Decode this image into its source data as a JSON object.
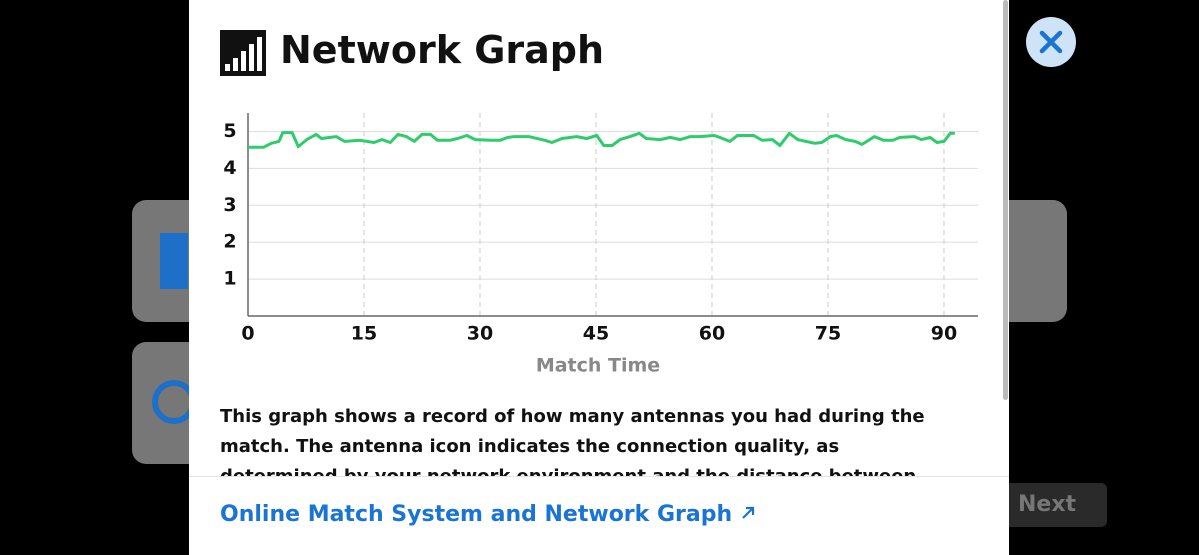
{
  "header": {
    "title": "Network Graph"
  },
  "chart_data": {
    "type": "line",
    "x_label": "Match Time",
    "color": "#2ecc6a",
    "x": [
      0,
      2,
      3,
      4,
      4.5,
      5.7,
      6.5,
      7.6,
      8.8,
      9.5,
      11.4,
      12.5,
      14.5,
      16.3,
      17.3,
      18.4,
      19.4,
      20.5,
      21.5,
      22.5,
      23.6,
      24.5,
      26.1,
      27.1,
      28.3,
      29.4,
      31.5,
      32.6,
      33.6,
      34.4,
      36.3,
      38.4,
      39.3,
      40.6,
      42.5,
      43.8,
      45.1,
      46.0,
      47.1,
      48.1,
      49.4,
      50.6,
      51.5,
      53.3,
      54.6,
      55.9,
      57.2,
      58.4,
      60.3,
      61.0,
      62.3,
      63.3,
      65.4,
      66.5,
      67.8,
      68.8,
      70.0,
      71.1,
      73.3,
      74.2,
      75.3,
      76.1,
      77.3,
      78.5,
      79.4,
      81.0,
      82.2,
      83.4,
      84.3,
      86.2,
      87.1,
      88.2,
      89.1,
      90.0,
      90.8,
      91.4
    ],
    "values": [
      4.57,
      4.57,
      4.68,
      4.73,
      4.97,
      4.97,
      4.59,
      4.78,
      4.92,
      4.81,
      4.86,
      4.73,
      4.76,
      4.7,
      4.78,
      4.7,
      4.92,
      4.86,
      4.73,
      4.92,
      4.92,
      4.76,
      4.76,
      4.81,
      4.89,
      4.78,
      4.76,
      4.76,
      4.84,
      4.86,
      4.86,
      4.76,
      4.7,
      4.81,
      4.86,
      4.81,
      4.89,
      4.62,
      4.62,
      4.78,
      4.86,
      4.95,
      4.81,
      4.78,
      4.84,
      4.78,
      4.86,
      4.86,
      4.89,
      4.84,
      4.73,
      4.89,
      4.89,
      4.76,
      4.78,
      4.62,
      4.95,
      4.78,
      4.68,
      4.7,
      4.86,
      4.89,
      4.78,
      4.73,
      4.65,
      4.86,
      4.76,
      4.76,
      4.84,
      4.86,
      4.78,
      4.84,
      4.7,
      4.73,
      4.95,
      4.95
    ],
    "xlim": [
      0,
      94.4
    ],
    "xticks": [
      0,
      15,
      30,
      45,
      60,
      75,
      90
    ],
    "ylim": [
      0,
      5.5
    ],
    "yticks": [
      1,
      2,
      3,
      4,
      5
    ],
    "grid": true
  },
  "description": "This graph shows a record of how many antennas you had during the match. The antenna icon indicates the connection quality, as determined by your network environment and the distance between yourself and the servers or your opponent",
  "link": {
    "text": "Online Match System and Network Graph"
  },
  "background": {
    "next": "Next"
  }
}
